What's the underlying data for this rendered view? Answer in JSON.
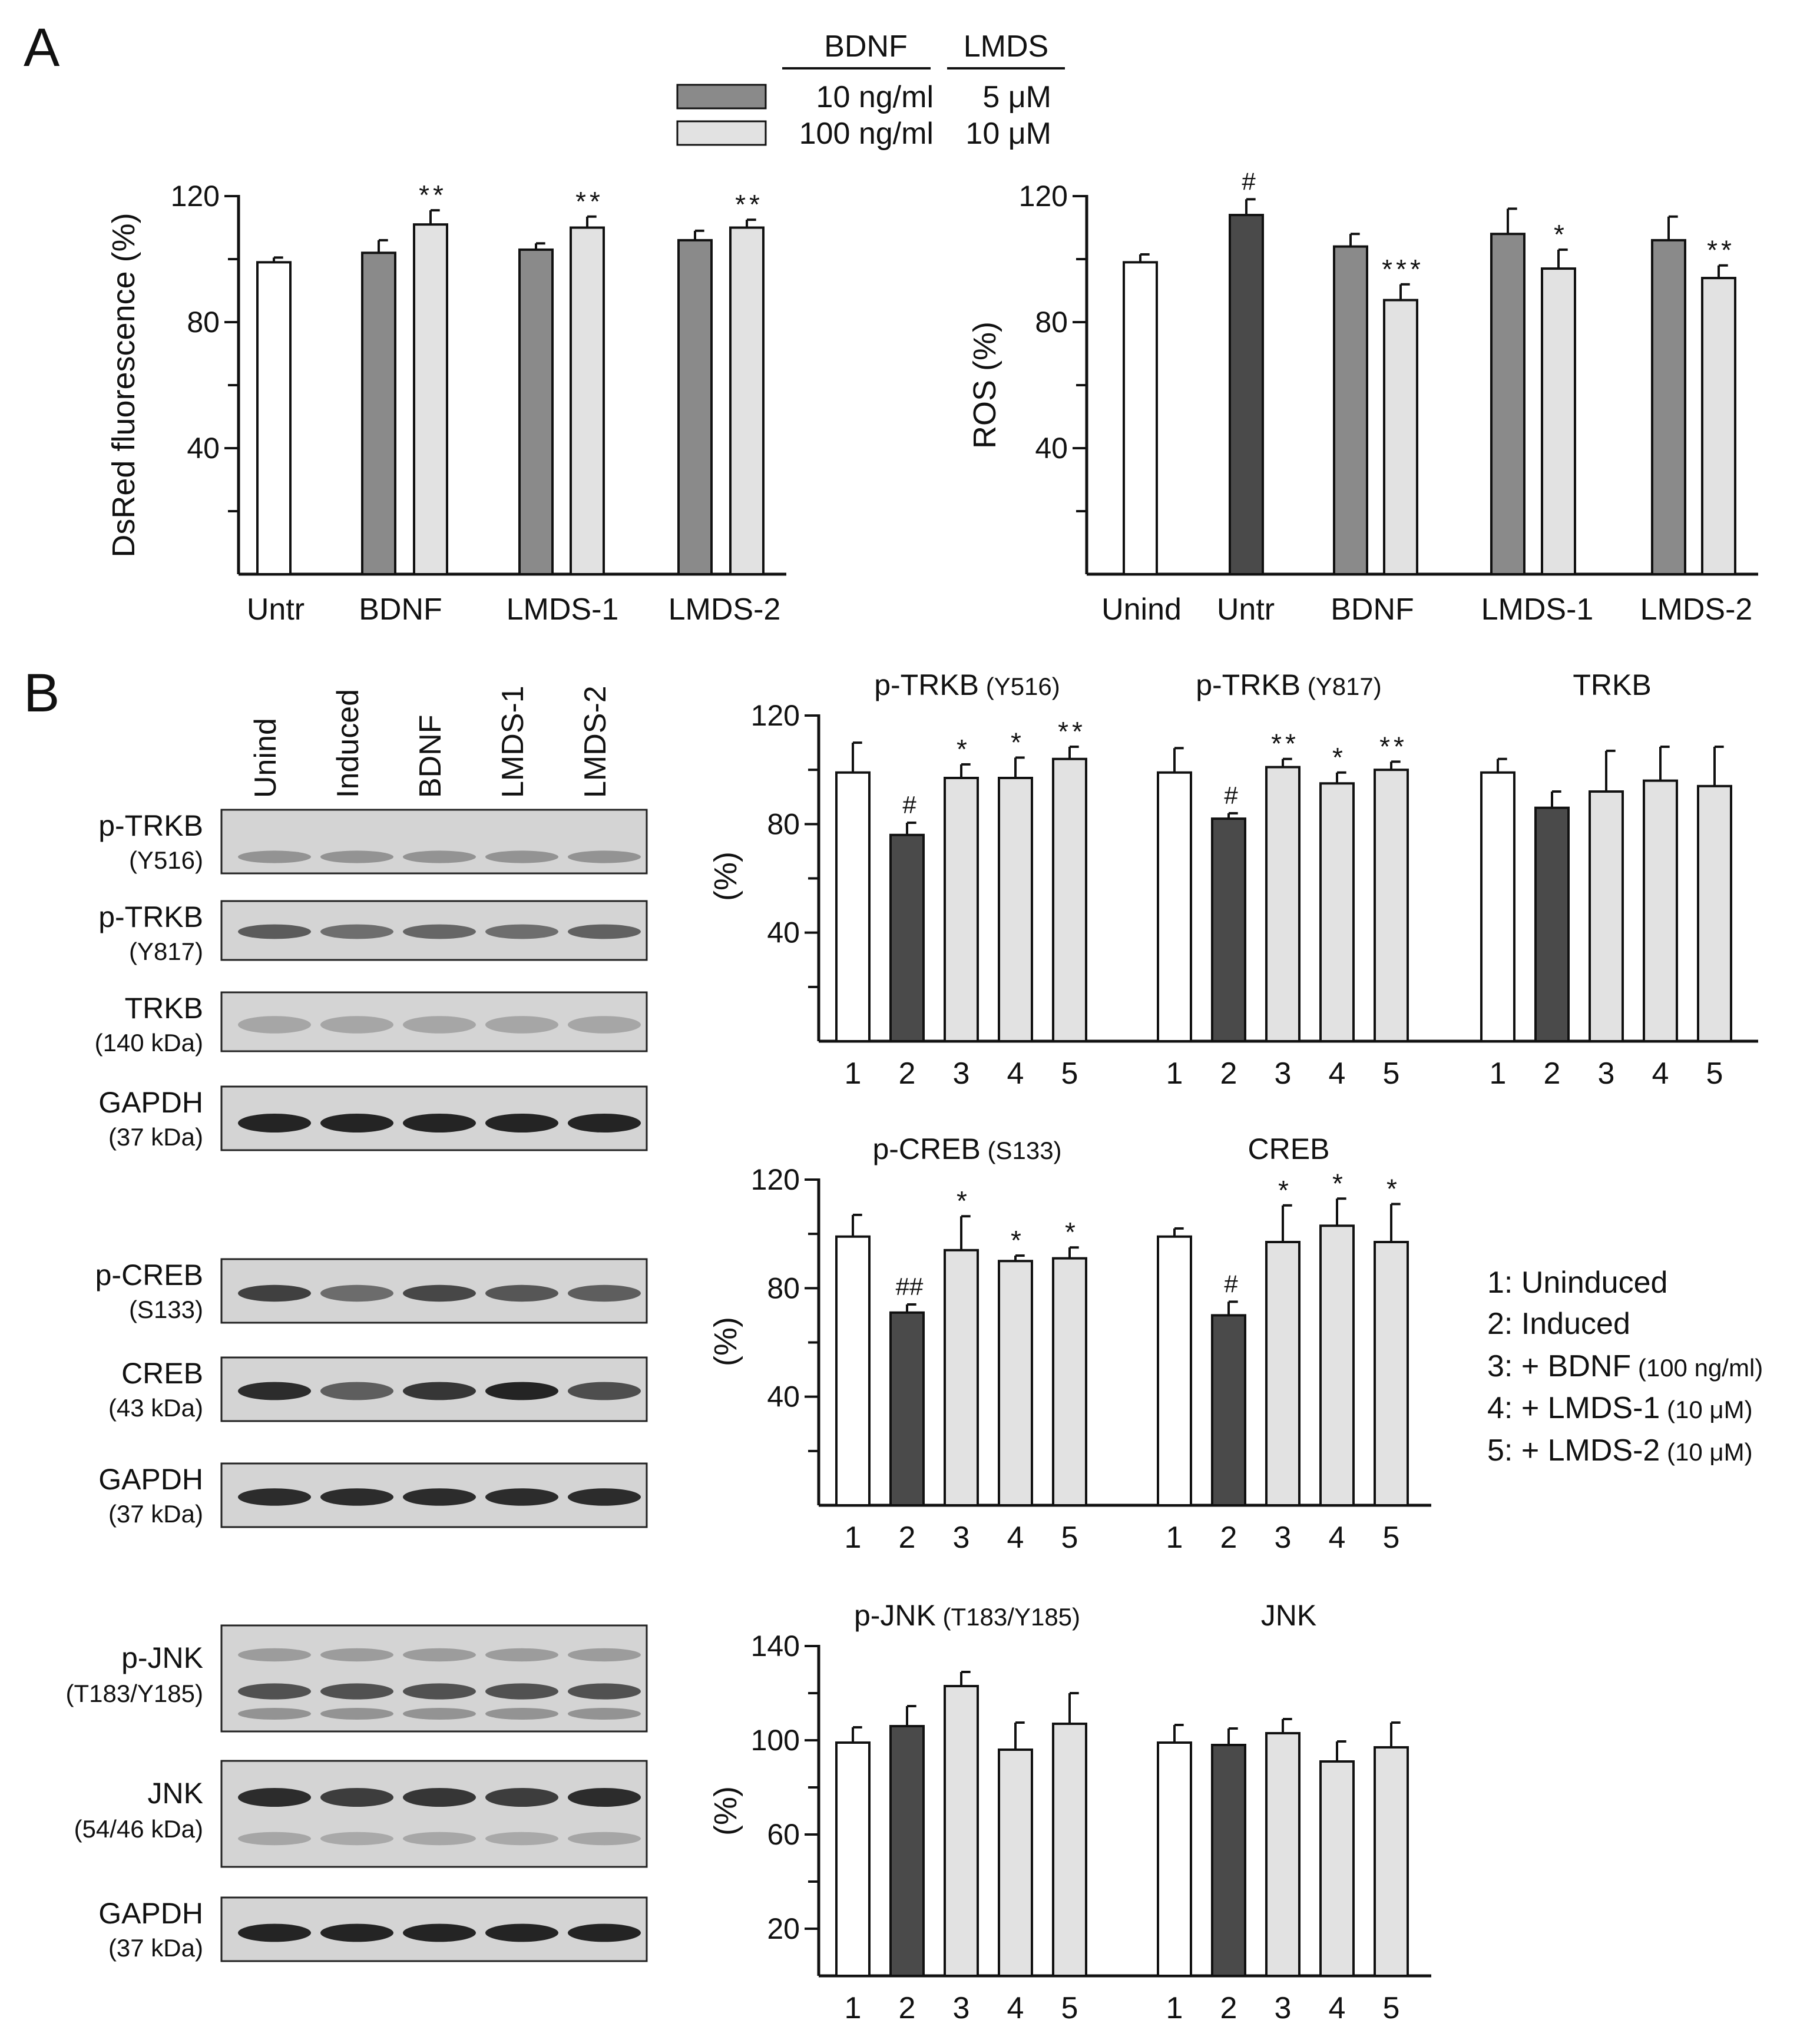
{
  "panel_labels": [
    "A",
    "B"
  ],
  "legend": {
    "header": [
      "BDNF",
      "LMDS"
    ],
    "rows": [
      {
        "color": "#8a8a8a",
        "bdnf": "10 ng/ml",
        "lmds": "5 μM"
      },
      {
        "color": "#e2e2e2",
        "bdnf": "100 ng/ml",
        "lmds": "10 μM"
      }
    ]
  },
  "colors": {
    "white": "#ffffff",
    "dark": "#4a4a4a",
    "mid": "#8a8a8a",
    "light": "#e2e2e2"
  },
  "blots": {
    "lanes": [
      "Unind",
      "Induced",
      "BDNF",
      "LMDS-1",
      "LMDS-2"
    ],
    "rows": [
      {
        "label": "p-TRKB",
        "sub": "(Y516)"
      },
      {
        "label": "p-TRKB",
        "sub": "(Y817)"
      },
      {
        "label": "TRKB",
        "sub": "(140 kDa)"
      },
      {
        "label": "GAPDH",
        "sub": "(37 kDa)"
      },
      {
        "label": "p-CREB",
        "sub": "(S133)"
      },
      {
        "label": "CREB",
        "sub": "(43 kDa)"
      },
      {
        "label": "GAPDH",
        "sub": "(37 kDa)"
      },
      {
        "label": "p-JNK",
        "sub": "(T183/Y185)"
      },
      {
        "label": "JNK",
        "sub": "(54/46 kDa)"
      },
      {
        "label": "GAPDH",
        "sub": "(37 kDa)"
      }
    ]
  },
  "group_legend": [
    {
      "main": "1: Uninduced",
      "small": ""
    },
    {
      "main": "2: Induced",
      "small": ""
    },
    {
      "main": "3: + BDNF",
      "small": "(100 ng/ml)"
    },
    {
      "main": "4: + LMDS-1",
      "small": "(10 μM)"
    },
    {
      "main": "5: + LMDS-2",
      "small": "(10 μM)"
    }
  ],
  "chart_data": [
    {
      "type": "bar",
      "ylabel": "DsRed fluorescence (%)",
      "ylim": [
        0,
        120
      ],
      "yticks": [
        40,
        80,
        120
      ],
      "categories": [
        "Untr",
        "BDNF",
        "LMDS-1",
        "LMDS-2"
      ],
      "bars": [
        {
          "value": 99,
          "err": 1.5,
          "color": "white",
          "sig": ""
        },
        {
          "value": 102,
          "err": 4,
          "color": "mid",
          "sig": ""
        },
        {
          "value": 111,
          "err": 4.5,
          "color": "light",
          "sig": "**"
        },
        {
          "value": 103,
          "err": 2,
          "color": "mid",
          "sig": ""
        },
        {
          "value": 110,
          "err": 3.5,
          "color": "light",
          "sig": "**"
        },
        {
          "value": 106,
          "err": 3,
          "color": "mid",
          "sig": ""
        },
        {
          "value": 110,
          "err": 2.5,
          "color": "light",
          "sig": "**"
        }
      ]
    },
    {
      "type": "bar",
      "ylabel": "ROS (%)",
      "ylim": [
        0,
        120
      ],
      "yticks": [
        40,
        80,
        120
      ],
      "categories": [
        "Unind",
        "Untr",
        "BDNF",
        "LMDS-1",
        "LMDS-2"
      ],
      "bars": [
        {
          "value": 99,
          "err": 2.5,
          "color": "white",
          "sig": ""
        },
        {
          "value": 114,
          "err": 5,
          "color": "dark",
          "sig": "#"
        },
        {
          "value": 104,
          "err": 4,
          "color": "mid",
          "sig": ""
        },
        {
          "value": 87,
          "err": 5,
          "color": "light",
          "sig": "***"
        },
        {
          "value": 108,
          "err": 8,
          "color": "mid",
          "sig": ""
        },
        {
          "value": 97,
          "err": 6,
          "color": "light",
          "sig": "*"
        },
        {
          "value": 106,
          "err": 7.5,
          "color": "mid",
          "sig": ""
        },
        {
          "value": 94,
          "err": 4,
          "color": "light",
          "sig": "**"
        }
      ]
    },
    {
      "type": "bar",
      "ylabel": "(%)",
      "ylim": [
        0,
        120
      ],
      "yticks": [
        40,
        80,
        120
      ],
      "groups": [
        {
          "title": "p-TRKB",
          "title_small": "(Y516)",
          "labels": [
            "1",
            "2",
            "3",
            "4",
            "5"
          ],
          "values": [
            99,
            76,
            97,
            97,
            104
          ],
          "errs": [
            11,
            4.5,
            5,
            7.5,
            4.5
          ],
          "sig": [
            "",
            "#",
            "*",
            "*",
            "**"
          ]
        },
        {
          "title": "p-TRKB",
          "title_small": "(Y817)",
          "labels": [
            "1",
            "2",
            "3",
            "4",
            "5"
          ],
          "values": [
            99,
            82,
            101,
            95,
            100
          ],
          "errs": [
            9,
            2,
            3,
            4,
            3
          ],
          "sig": [
            "",
            "#",
            "**",
            "*",
            "**"
          ]
        },
        {
          "title": "TRKB",
          "title_small": "",
          "labels": [
            "1",
            "2",
            "3",
            "4",
            "5"
          ],
          "values": [
            99,
            86,
            92,
            96,
            94
          ],
          "errs": [
            5,
            6,
            15,
            12.5,
            14.5
          ],
          "sig": [
            "",
            "",
            "",
            "",
            ""
          ]
        }
      ]
    },
    {
      "type": "bar",
      "ylabel": "(%)",
      "ylim": [
        0,
        120
      ],
      "yticks": [
        40,
        80,
        120
      ],
      "groups": [
        {
          "title": "p-CREB",
          "title_small": "(S133)",
          "labels": [
            "1",
            "2",
            "3",
            "4",
            "5"
          ],
          "values": [
            99,
            71,
            94,
            90,
            91
          ],
          "errs": [
            8,
            3,
            12.5,
            2,
            4
          ],
          "sig": [
            "",
            "##",
            "*",
            "*",
            "*"
          ]
        },
        {
          "title": "CREB",
          "title_small": "",
          "labels": [
            "1",
            "2",
            "3",
            "4",
            "5"
          ],
          "values": [
            99,
            70,
            97,
            103,
            97
          ],
          "errs": [
            3,
            5,
            13.5,
            10,
            14
          ],
          "sig": [
            "",
            "#",
            "*",
            "*",
            "*"
          ]
        }
      ]
    },
    {
      "type": "bar",
      "ylabel": "(%)",
      "ylim": [
        0,
        140
      ],
      "yticks": [
        20,
        60,
        100,
        140
      ],
      "groups": [
        {
          "title": "p-JNK",
          "title_small": "(T183/Y185)",
          "labels": [
            "1",
            "2",
            "3",
            "4",
            "5"
          ],
          "values": [
            99,
            106,
            123,
            96,
            107
          ],
          "errs": [
            6.5,
            8.5,
            6,
            11.5,
            13
          ],
          "sig": [
            "",
            "",
            "",
            "",
            ""
          ]
        },
        {
          "title": "JNK",
          "title_small": "",
          "labels": [
            "1",
            "2",
            "3",
            "4",
            "5"
          ],
          "values": [
            99,
            98,
            103,
            91,
            97
          ],
          "errs": [
            7.5,
            7,
            6,
            8.5,
            10.5
          ],
          "sig": [
            "",
            "",
            "",
            "",
            ""
          ]
        }
      ]
    }
  ]
}
